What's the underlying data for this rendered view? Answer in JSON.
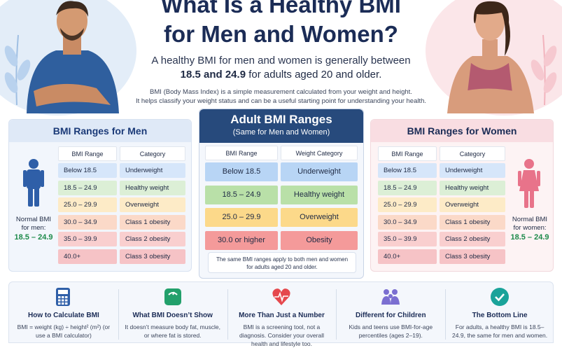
{
  "title_line1": "What Is a Healthy BMI",
  "title_line2": "for Men and Women?",
  "lead_line1": "A healthy BMI for men and women is generally between",
  "lead_range": "18.5 and 24.9",
  "lead_line2_rest": " for adults aged 20 and older.",
  "desc_line1": "BMI (Body Mass Index) is a simple measurement calculated from your weight and height.",
  "desc_line2": "It helps classify your weight status and can be a useful starting point for understanding your health.",
  "men": {
    "heading": "BMI Ranges for Men",
    "col_range": "BMI Range",
    "col_category": "Category",
    "rows": [
      {
        "range": "Below 18.5",
        "category": "Underweight",
        "color": "#d6e6fa"
      },
      {
        "range": "18.5 – 24.9",
        "category": "Healthy weight",
        "color": "#dcefd6"
      },
      {
        "range": "25.0 – 29.9",
        "category": "Overweight",
        "color": "#fdebc7"
      },
      {
        "range": "30.0 – 34.9",
        "category": "Class 1 obesity",
        "color": "#fbd9c8"
      },
      {
        "range": "35.0 – 39.9",
        "category": "Class 2 obesity",
        "color": "#f9cfcf"
      },
      {
        "range": "40.0+",
        "category": "Class 3 obesity",
        "color": "#f6c3c6"
      }
    ],
    "normal_label_1": "Normal BMI",
    "normal_label_2": "for men:",
    "normal_value": "18.5 – 24.9"
  },
  "women": {
    "heading": "BMI Ranges for Women",
    "col_range": "BMI Range",
    "col_category": "Category",
    "rows": [
      {
        "range": "Below 18.5",
        "category": "Underweight",
        "color": "#d6e6fa"
      },
      {
        "range": "18.5 – 24.9",
        "category": "Healthy weight",
        "color": "#dcefd6"
      },
      {
        "range": "25.0 – 29.9",
        "category": "Overweight",
        "color": "#fdebc7"
      },
      {
        "range": "30.0 – 34.9",
        "category": "Class 1 obesity",
        "color": "#fbd9c8"
      },
      {
        "range": "35.0 – 39.9",
        "category": "Class 2 obesity",
        "color": "#f9cfcf"
      },
      {
        "range": "40.0+",
        "category": "Class 3 obesity",
        "color": "#f6c3c6"
      }
    ],
    "normal_label_1": "Normal BMI",
    "normal_label_2": "for women:",
    "normal_value": "18.5 – 24.9"
  },
  "adult": {
    "heading": "Adult BMI Ranges",
    "subheading": "(Same for Men and Women)",
    "col_range": "BMI Range",
    "col_category": "Weight Category",
    "rows": [
      {
        "range": "Below 18.5",
        "category": "Underweight",
        "color": "#b8d5f5"
      },
      {
        "range": "18.5 – 24.9",
        "category": "Healthy weight",
        "color": "#b9e0a8"
      },
      {
        "range": "25.0 – 29.9",
        "category": "Overweight",
        "color": "#fcd98a"
      },
      {
        "range": "30.0 or higher",
        "category": "Obesity",
        "color": "#f49a9a"
      }
    ],
    "note_line1": "The same BMI ranges apply to both men and women",
    "note_line2": "for adults aged 20 and older."
  },
  "bottom": [
    {
      "icon": "calculator-icon",
      "title": "How to Calculate BMI",
      "text": "BMI = weight (kg) ÷ height² (m²) (or use a BMI calculator)",
      "color": "#2f5fa8"
    },
    {
      "icon": "scale-icon",
      "title": "What BMI Doesn’t Show",
      "text": "It doesn’t measure body fat, muscle, or where fat is stored.",
      "color": "#22a06b"
    },
    {
      "icon": "heart-pulse-icon",
      "title": "More Than Just a Number",
      "text": "BMI is a screening tool, not a diagnosis. Consider your overall health and lifestyle too.",
      "color": "#e5484d"
    },
    {
      "icon": "family-icon",
      "title": "Different for Children",
      "text": "Kids and teens use BMI-for-age percentiles (ages 2–19).",
      "color": "#7b6fd1"
    },
    {
      "icon": "check-circle-icon",
      "title": "The Bottom Line",
      "text": "For adults, a healthy BMI is 18.5–24.9, the same for men and women.",
      "color": "#1aa39a"
    }
  ]
}
